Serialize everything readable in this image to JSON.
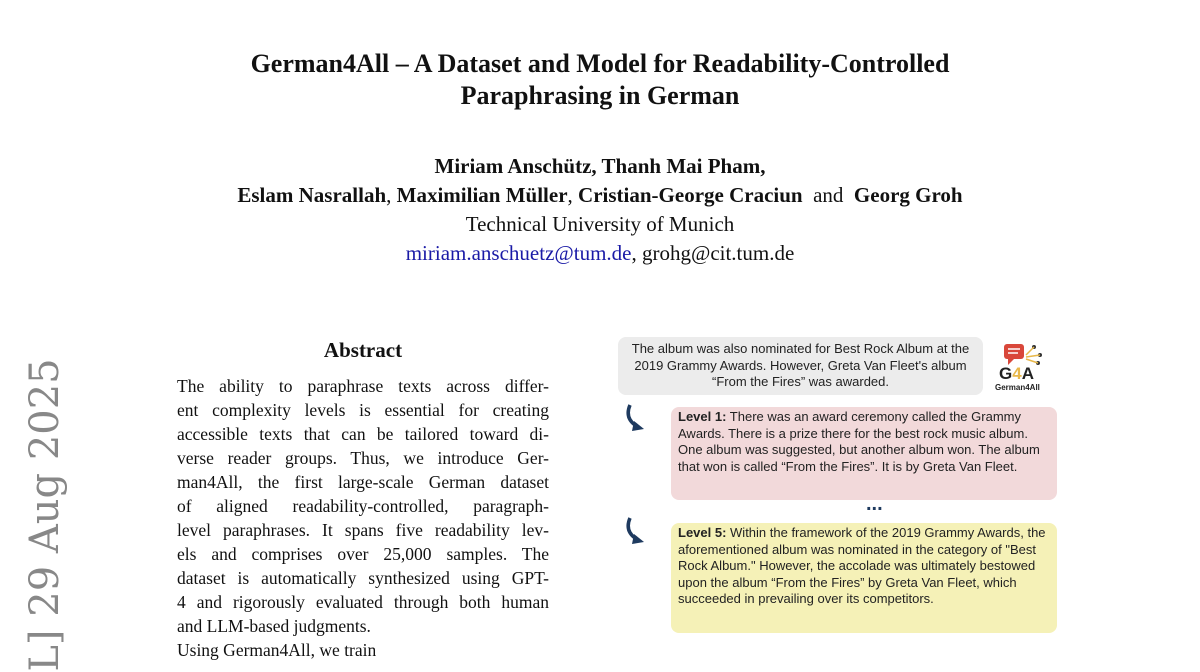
{
  "title_lines": [
    "German4All – A Dataset and Model for Readability-Controlled",
    "Paraphrasing in German"
  ],
  "authors": {
    "line1": [
      "Miriam Anschütz",
      "Thanh Mai Pham,"
    ],
    "line2": [
      "Eslam Nasrallah",
      "Maximilian Müller",
      "Cristian-George Craciun",
      "and",
      "Georg Groh"
    ],
    "affiliation": "Technical University of Munich",
    "email1": "miriam.anschuetz@tum.de",
    "email2": "grohg@cit.tum.de"
  },
  "arxiv_stamp": "L]  29 Aug 2025",
  "abstract": {
    "heading": "Abstract",
    "lines": [
      "The ability to paraphrase texts across differ-",
      "ent complexity levels is essential for creating",
      "accessible texts that can be tailored toward di-",
      "verse reader groups. Thus, we introduce Ger-",
      "man4All, the first large-scale German dataset",
      "of aligned readability-controlled, paragraph-",
      "level paraphrases. It spans five readability lev-",
      "els and comprises over 25,000 samples.  The",
      "dataset is automatically synthesized using GPT-",
      "4 and rigorously evaluated through both human",
      "and LLM-based judgments.",
      "Using German4All, we train"
    ]
  },
  "figure": {
    "source_text": "The album was also nominated for Best Rock Album at the 2019 Grammy Awards. However, Greta Van Fleet's album “From the Fires” was awarded.",
    "logo_text": "G4A",
    "logo_caption": "German4All",
    "level1_label": "Level 1:",
    "level1_text": " There was an award ceremony called the Grammy Awards. There is a prize there for the best rock music album. One album was suggested, but another album won. The album that won is called “From the Fires”. It is by Greta Van Fleet.",
    "ellipsis": "...",
    "level5_label": "Level 5:",
    "level5_text": " Within the framework of the 2019 Grammy Awards, the aforementioned album was nominated in the category of \"Best Rock Album.\" However, the accolade was ultimately bestowed upon the album “From the Fires” by Greta Van Fleet, which succeeded in prevailing over its competitors.",
    "colors": {
      "source_bg": "#ececec",
      "level1_bg": "#f2d9da",
      "level5_bg": "#f5f1b7",
      "arrow": "#1e3a5f"
    }
  }
}
